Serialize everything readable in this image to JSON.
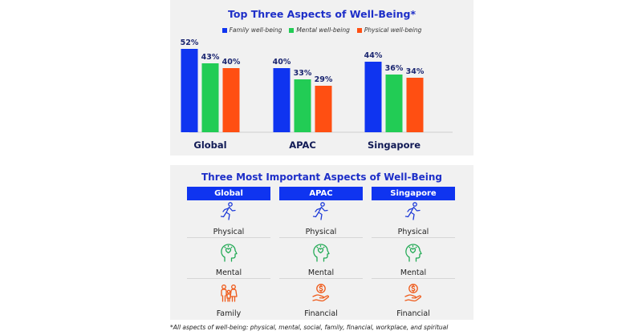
{
  "chart": {
    "title": "Top Three Aspects of Well-Being*"
  },
  "chart_data": {
    "type": "bar",
    "title": "Top Three Aspects of Well-Being*",
    "categories": [
      "Global",
      "APAC",
      "Singapore"
    ],
    "series": [
      {
        "name": "Family well-being",
        "values": [
          52,
          40,
          44
        ],
        "color": "#0f34f0"
      },
      {
        "name": "Mental well-being",
        "values": [
          43,
          33,
          36
        ],
        "color": "#22cc55"
      },
      {
        "name": "Physical well-being",
        "values": [
          40,
          29,
          34
        ],
        "color": "#ff4f12"
      }
    ],
    "value_suffix": "%",
    "ylim": [
      0,
      60
    ],
    "grid": false,
    "legend_position": "top"
  },
  "table": {
    "title": "Three Most Important Aspects of Well-Being",
    "columns": [
      "Global",
      "APAC",
      "Singapore"
    ],
    "rows": [
      [
        {
          "label": "Physical",
          "icon": "runner-icon",
          "color": "#1e3bd8"
        },
        {
          "label": "Physical",
          "icon": "runner-icon",
          "color": "#1e3bd8"
        },
        {
          "label": "Physical",
          "icon": "runner-icon",
          "color": "#1e3bd8"
        }
      ],
      [
        {
          "label": "Mental",
          "icon": "head-heart-icon",
          "color": "#22aa55"
        },
        {
          "label": "Mental",
          "icon": "head-heart-icon",
          "color": "#22aa55"
        },
        {
          "label": "Mental",
          "icon": "head-heart-icon",
          "color": "#22aa55"
        }
      ],
      [
        {
          "label": "Family",
          "icon": "family-icon",
          "color": "#ef5a1a"
        },
        {
          "label": "Financial",
          "icon": "hand-coin-icon",
          "color": "#ef5a1a"
        },
        {
          "label": "Financial",
          "icon": "hand-coin-icon",
          "color": "#ef5a1a"
        }
      ]
    ]
  },
  "footnote": "*All aspects of well-being: physical, mental, social, family, financial, workplace, and spiritual"
}
